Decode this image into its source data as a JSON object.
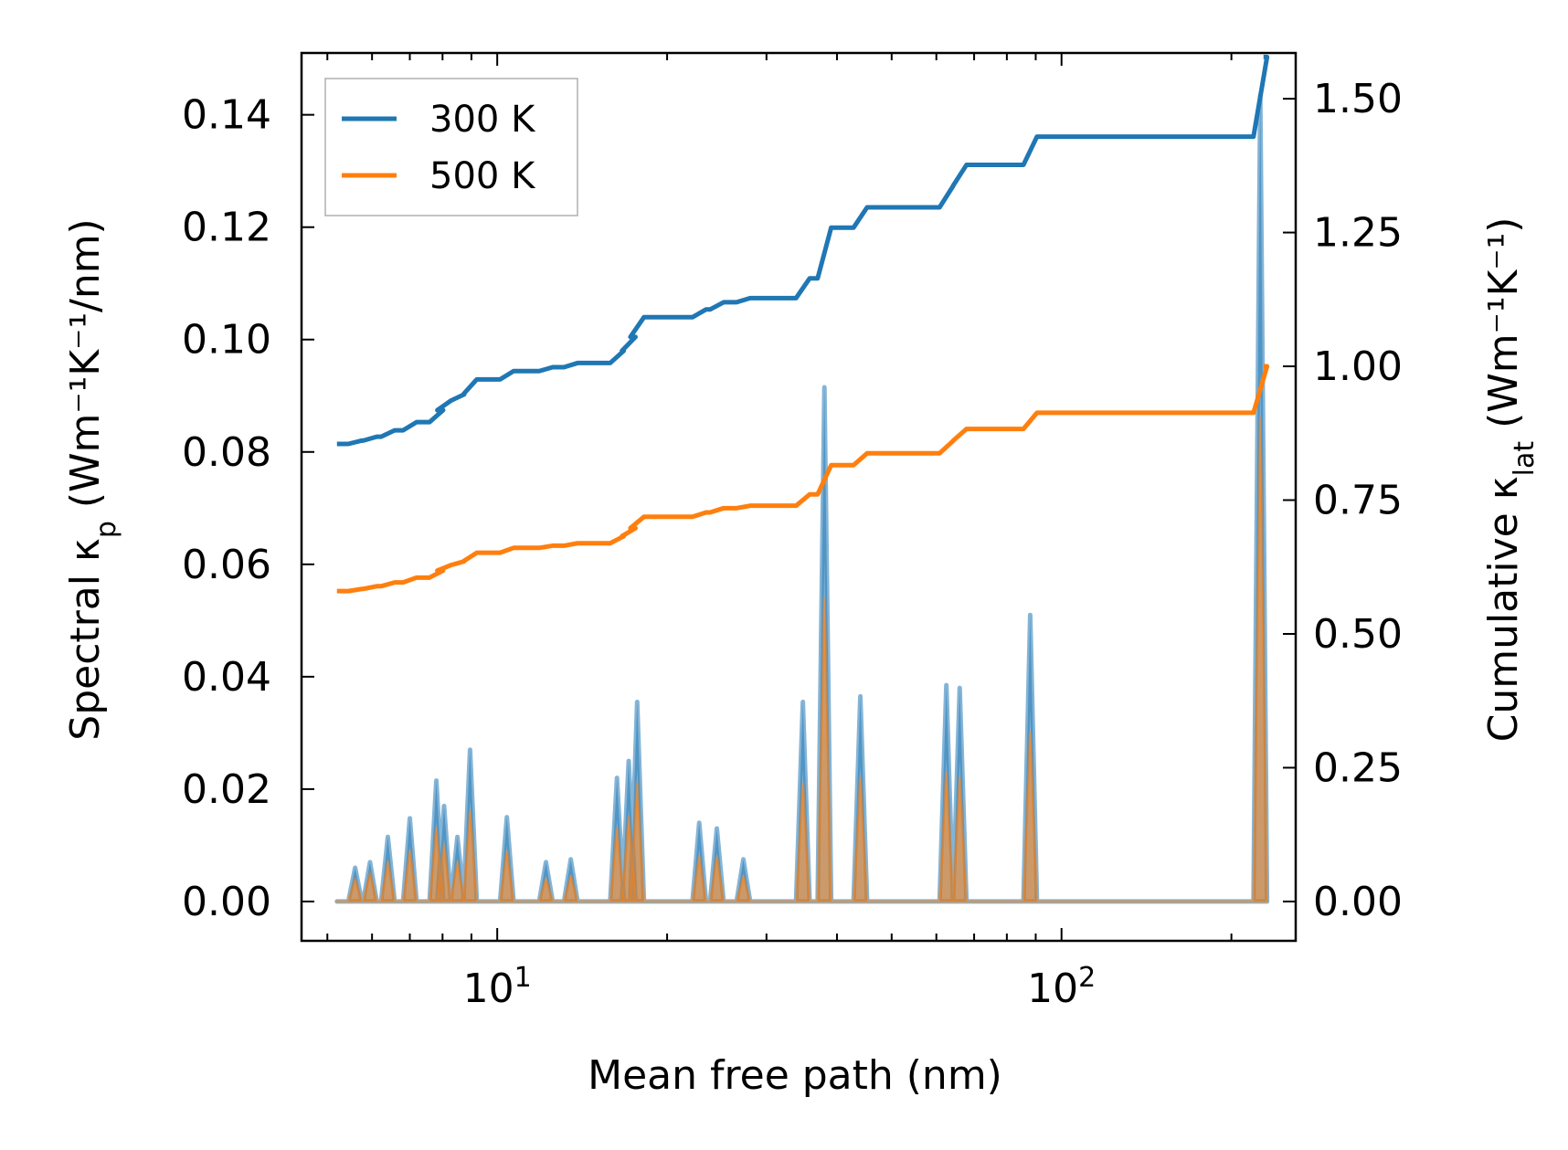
{
  "chart_data": {
    "type": "line",
    "xscale": "log",
    "xlabel": "Mean free path (nm)",
    "ylabel_left": "Spectral κ",
    "ylabel_left_sub": "p",
    "ylabel_left_units": "Wm⁻¹K⁻¹/nm",
    "ylabel_right": "Cumulative κ",
    "ylabel_right_sub": "lat",
    "ylabel_right_units": "Wm⁻¹K⁻¹",
    "xlim": [
      4.5,
      260
    ],
    "ylim_left": [
      -0.007,
      0.151
    ],
    "ylim_right": [
      -0.0735,
      1.5855
    ],
    "x_tick_labels": [
      {
        "value": 10,
        "base": "10",
        "exp": "1"
      },
      {
        "value": 100,
        "base": "10",
        "exp": "2"
      }
    ],
    "y_left_ticks": [
      0.0,
      0.02,
      0.04,
      0.06,
      0.08,
      0.1,
      0.12,
      0.14
    ],
    "y_left_tick_labels": [
      "0.00",
      "0.02",
      "0.04",
      "0.06",
      "0.08",
      "0.10",
      "0.12",
      "0.14"
    ],
    "y_right_ticks": [
      0.0,
      0.25,
      0.5,
      0.75,
      1.0,
      1.25,
      1.5
    ],
    "y_right_tick_labels": [
      "0.00",
      "0.25",
      "0.50",
      "0.75",
      "1.00",
      "1.25",
      "1.50"
    ],
    "legend": {
      "location": "upper-left",
      "entries": [
        "300 K",
        "500 K"
      ]
    },
    "colors": {
      "300 K": "#1f77b4",
      "500 K": "#ff7f0e",
      "fill_300": "#1f77b4",
      "fill_500": "#ff7f0e"
    },
    "spectral_peaks": [
      {
        "x": 5.6,
        "s300": 0.006,
        "s500": 0.004
      },
      {
        "x": 5.95,
        "s300": 0.007,
        "s500": 0.005
      },
      {
        "x": 6.4,
        "s300": 0.0115,
        "s500": 0.007
      },
      {
        "x": 7.0,
        "s300": 0.0148,
        "s500": 0.009
      },
      {
        "x": 7.8,
        "s300": 0.0215,
        "s500": 0.013
      },
      {
        "x": 8.05,
        "s300": 0.017,
        "s500": 0.01
      },
      {
        "x": 8.5,
        "s300": 0.0115,
        "s500": 0.007
      },
      {
        "x": 8.95,
        "s300": 0.027,
        "s500": 0.016
      },
      {
        "x": 10.4,
        "s300": 0.015,
        "s500": 0.009
      },
      {
        "x": 12.2,
        "s300": 0.007,
        "s500": 0.004
      },
      {
        "x": 13.5,
        "s300": 0.0075,
        "s500": 0.0045
      },
      {
        "x": 16.3,
        "s300": 0.022,
        "s500": 0.013
      },
      {
        "x": 17.1,
        "s300": 0.025,
        "s500": 0.015
      },
      {
        "x": 17.7,
        "s300": 0.0355,
        "s500": 0.021
      },
      {
        "x": 22.8,
        "s300": 0.014,
        "s500": 0.008
      },
      {
        "x": 24.5,
        "s300": 0.013,
        "s500": 0.008
      },
      {
        "x": 27.3,
        "s300": 0.0075,
        "s500": 0.0045
      },
      {
        "x": 34.8,
        "s300": 0.0355,
        "s500": 0.021
      },
      {
        "x": 38.0,
        "s300": 0.0915,
        "s500": 0.054
      },
      {
        "x": 44.0,
        "s300": 0.0365,
        "s500": 0.022
      },
      {
        "x": 62.5,
        "s300": 0.0385,
        "s500": 0.023
      },
      {
        "x": 66.0,
        "s300": 0.038,
        "s500": 0.022
      },
      {
        "x": 88.0,
        "s300": 0.051,
        "s500": 0.03
      },
      {
        "x": 225.0,
        "s300": 0.1435,
        "s500": 0.086
      }
    ],
    "series": [
      {
        "name": "300 K",
        "axis": "right",
        "start_value": 0.855,
        "x_range": [
          5.2,
          228
        ]
      },
      {
        "name": "500 K",
        "axis": "right",
        "start_value": 0.58,
        "x_range": [
          5.2,
          228
        ]
      }
    ]
  }
}
